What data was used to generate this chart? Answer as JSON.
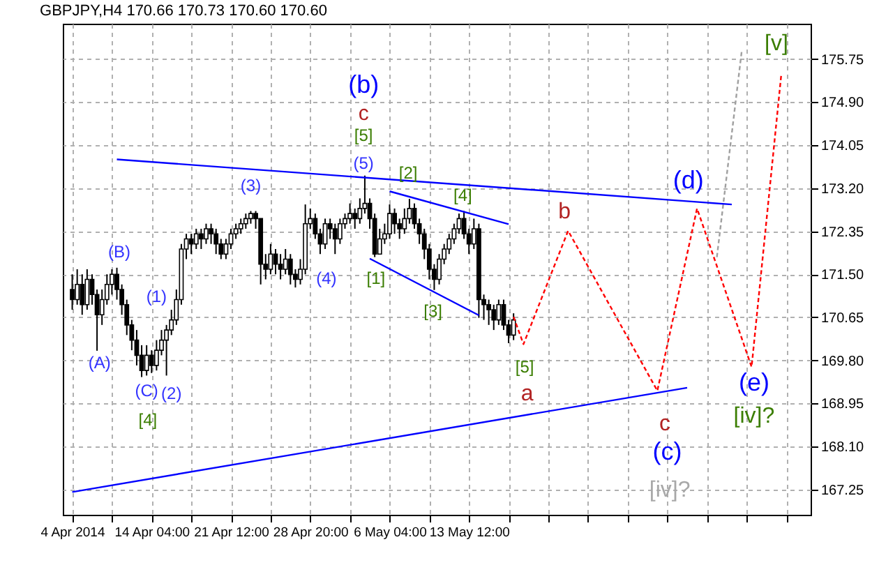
{
  "chart_data": {
    "type": "candlestick",
    "title": "GBPJPY,H4  170.66 170.73 170.60 170.60",
    "color": "#000000",
    "categories": [
      "4 Apr 2014",
      null,
      null,
      null,
      null,
      null,
      null,
      null,
      null,
      null,
      null,
      null,
      null,
      null,
      null,
      null,
      "14 Apr 04:00",
      null,
      null,
      null,
      null,
      null,
      null,
      null,
      null,
      null,
      null,
      null,
      null,
      null,
      null,
      null,
      "21 Apr 12:00",
      null,
      null,
      null,
      null,
      null,
      null,
      null,
      null,
      null,
      null,
      null,
      null,
      null,
      null,
      null,
      "28 Apr 20:00",
      null,
      null,
      null,
      null,
      null,
      null,
      null,
      null,
      null,
      null,
      null,
      null,
      null,
      null,
      null,
      "6 May 04:00",
      null,
      null,
      null,
      null,
      null,
      null,
      null,
      null,
      null,
      null,
      null,
      null,
      null,
      null,
      null,
      "13 May 12:00",
      null,
      null,
      null,
      null,
      null,
      null,
      null,
      null,
      null,
      null,
      null,
      null,
      null,
      null,
      null,
      null,
      null,
      null,
      null,
      null,
      null,
      null,
      null,
      null,
      null,
      null,
      null,
      null,
      null,
      null,
      null,
      null,
      null,
      null,
      null,
      null,
      null,
      null,
      null,
      null,
      null,
      null,
      null,
      null,
      null,
      null,
      null,
      null,
      null,
      null,
      null,
      null,
      null,
      null,
      null,
      null,
      null,
      null,
      null,
      null,
      null,
      null,
      null,
      null,
      null,
      null,
      null
    ],
    "ohlc": [
      [
        171.2,
        171.5,
        170.8,
        171.0
      ],
      [
        171.0,
        171.6,
        170.9,
        171.3
      ],
      [
        171.3,
        171.5,
        170.7,
        170.9
      ],
      [
        170.9,
        171.6,
        170.8,
        171.4
      ],
      [
        171.4,
        171.5,
        170.9,
        171.1
      ],
      [
        171.1,
        171.2,
        169.99,
        170.7
      ],
      [
        170.7,
        171.2,
        170.5,
        171.0
      ],
      [
        171.0,
        171.5,
        170.9,
        171.3
      ],
      [
        171.3,
        171.6,
        171.1,
        171.5
      ],
      [
        171.5,
        171.63,
        171.0,
        171.2
      ],
      [
        171.2,
        171.3,
        170.7,
        170.9
      ],
      [
        170.9,
        171.0,
        170.3,
        170.5
      ],
      [
        170.5,
        170.6,
        170.0,
        170.2
      ],
      [
        170.2,
        170.4,
        169.7,
        169.9
      ],
      [
        169.9,
        170.1,
        169.47,
        169.6
      ],
      [
        169.6,
        170.1,
        169.5,
        169.9
      ],
      [
        169.9,
        170.0,
        169.55,
        169.7
      ],
      [
        169.7,
        170.2,
        169.6,
        170.0
      ],
      [
        170.0,
        170.4,
        169.9,
        170.2
      ],
      [
        170.2,
        170.5,
        169.5,
        170.4
      ],
      [
        170.4,
        170.8,
        170.3,
        170.6
      ],
      [
        170.6,
        171.2,
        170.5,
        171.0
      ],
      [
        171.0,
        172.1,
        170.9,
        172.0
      ],
      [
        172.0,
        172.3,
        171.8,
        172.2
      ],
      [
        172.2,
        172.3,
        171.9,
        172.1
      ],
      [
        172.1,
        172.4,
        172.0,
        172.3
      ],
      [
        172.3,
        172.4,
        172.0,
        172.2
      ],
      [
        172.2,
        172.5,
        172.1,
        172.4
      ],
      [
        172.4,
        172.5,
        172.1,
        172.3
      ],
      [
        172.3,
        172.4,
        171.9,
        172.1
      ],
      [
        172.1,
        172.2,
        171.8,
        171.9
      ],
      [
        171.9,
        172.2,
        171.8,
        172.1
      ],
      [
        172.1,
        172.4,
        172.0,
        172.3
      ],
      [
        172.3,
        172.5,
        172.2,
        172.4
      ],
      [
        172.4,
        172.6,
        172.3,
        172.5
      ],
      [
        172.5,
        172.7,
        172.4,
        172.6
      ],
      [
        172.6,
        172.75,
        172.5,
        172.7
      ],
      [
        172.7,
        172.75,
        172.4,
        172.6
      ],
      [
        172.6,
        172.6,
        171.3,
        171.7
      ],
      [
        171.7,
        171.9,
        171.4,
        171.6
      ],
      [
        171.6,
        172.1,
        171.5,
        171.9
      ],
      [
        171.9,
        172.0,
        171.5,
        171.7
      ],
      [
        171.7,
        171.9,
        171.4,
        171.6
      ],
      [
        171.6,
        172.0,
        171.5,
        171.8
      ],
      [
        171.8,
        171.9,
        171.3,
        171.5
      ],
      [
        171.5,
        171.6,
        171.24,
        171.4
      ],
      [
        171.4,
        171.8,
        171.3,
        171.6
      ],
      [
        171.6,
        172.88,
        171.5,
        172.5
      ],
      [
        172.5,
        172.8,
        172.4,
        172.6
      ],
      [
        172.6,
        172.7,
        172.2,
        172.3
      ],
      [
        172.3,
        172.4,
        171.9,
        172.1
      ],
      [
        172.1,
        172.6,
        172.0,
        172.5
      ],
      [
        172.5,
        172.6,
        172.2,
        172.4
      ],
      [
        172.4,
        172.5,
        171.9,
        172.2
      ],
      [
        172.2,
        172.6,
        172.1,
        172.5
      ],
      [
        172.5,
        172.7,
        172.4,
        172.6
      ],
      [
        172.6,
        172.9,
        172.5,
        172.7
      ],
      [
        172.7,
        172.8,
        172.4,
        172.6
      ],
      [
        172.6,
        173.0,
        172.5,
        172.8
      ],
      [
        172.8,
        173.45,
        172.7,
        172.9
      ],
      [
        172.9,
        173.0,
        172.4,
        172.6
      ],
      [
        172.6,
        172.7,
        171.84,
        171.9
      ],
      [
        171.9,
        172.4,
        171.9,
        172.2
      ],
      [
        172.2,
        172.5,
        172.1,
        172.3
      ],
      [
        172.3,
        172.88,
        172.2,
        172.7
      ],
      [
        172.7,
        172.8,
        172.3,
        172.5
      ],
      [
        172.5,
        172.6,
        172.2,
        172.4
      ],
      [
        172.4,
        172.8,
        172.3,
        172.6
      ],
      [
        172.6,
        172.99,
        172.5,
        172.8
      ],
      [
        172.8,
        172.9,
        172.4,
        172.5
      ],
      [
        172.5,
        172.6,
        172.1,
        172.3
      ],
      [
        172.3,
        172.4,
        171.8,
        172.0
      ],
      [
        172.0,
        172.1,
        171.4,
        171.6
      ],
      [
        171.6,
        171.7,
        171.19,
        171.4
      ],
      [
        171.4,
        171.9,
        171.3,
        171.8
      ],
      [
        171.8,
        172.1,
        171.7,
        172.0
      ],
      [
        172.0,
        172.3,
        171.9,
        172.2
      ],
      [
        172.2,
        172.5,
        172.1,
        172.4
      ],
      [
        172.4,
        172.7,
        172.3,
        172.6
      ],
      [
        172.6,
        172.75,
        172.2,
        172.3
      ],
      [
        172.3,
        172.4,
        171.9,
        172.1
      ],
      [
        172.1,
        172.6,
        172.0,
        172.4
      ],
      [
        172.4,
        172.5,
        170.64,
        171.0
      ],
      [
        171.0,
        171.1,
        170.6,
        170.9
      ],
      [
        170.9,
        171.0,
        170.5,
        170.8
      ],
      [
        170.8,
        170.9,
        170.4,
        170.6
      ],
      [
        170.6,
        171.0,
        170.5,
        170.9
      ],
      [
        170.9,
        171.0,
        170.4,
        170.5
      ],
      [
        170.5,
        170.6,
        170.14,
        170.3
      ],
      [
        170.3,
        170.73,
        170.2,
        170.6
      ],
      null,
      null,
      null,
      null,
      null,
      null,
      null,
      null,
      null,
      null,
      null,
      null,
      null,
      null,
      null,
      null,
      null,
      null,
      null,
      null,
      null,
      null,
      null,
      null,
      null,
      null,
      null,
      null,
      null,
      null,
      null,
      null,
      null,
      null,
      null,
      null,
      null,
      null,
      null,
      null,
      null,
      null,
      null,
      null,
      null,
      null,
      null,
      null,
      null,
      null,
      null,
      null,
      null,
      null,
      null,
      null,
      null,
      null
    ],
    "series": [
      {
        "type": "line",
        "color": "#ff0000",
        "line_style": "dashed",
        "values": [
          null,
          null,
          null,
          null,
          null,
          null,
          null,
          null,
          null,
          null,
          null,
          null,
          null,
          null,
          null,
          null,
          null,
          null,
          null,
          null,
          null,
          null,
          null,
          null,
          null,
          null,
          null,
          null,
          null,
          null,
          null,
          null,
          null,
          null,
          null,
          null,
          null,
          null,
          null,
          null,
          null,
          null,
          null,
          null,
          null,
          null,
          null,
          null,
          null,
          null,
          null,
          null,
          null,
          null,
          null,
          null,
          null,
          null,
          null,
          null,
          null,
          null,
          null,
          null,
          null,
          null,
          null,
          null,
          null,
          null,
          null,
          null,
          null,
          null,
          null,
          null,
          null,
          null,
          null,
          null,
          null,
          null,
          null,
          null,
          null,
          null,
          null,
          null,
          null,
          170.66,
          null,
          170.12,
          null,
          null,
          null,
          null,
          null,
          null,
          null,
          null,
          172.36,
          null,
          null,
          null,
          null,
          null,
          null,
          null,
          null,
          null,
          null,
          null,
          null,
          null,
          null,
          null,
          null,
          null,
          169.2,
          null,
          null,
          null,
          null,
          null,
          null,
          null,
          172.8,
          null,
          null,
          null,
          null,
          null,
          null,
          null,
          null,
          null,
          null,
          169.67,
          null,
          null,
          null,
          null,
          null,
          175.46,
          null,
          null,
          null,
          null
        ]
      },
      {
        "type": "line",
        "color": "#a0a0a0",
        "line_style": "dashed",
        "values": [
          null,
          null,
          null,
          null,
          null,
          null,
          null,
          null,
          null,
          null,
          null,
          null,
          null,
          null,
          null,
          null,
          null,
          null,
          null,
          null,
          null,
          null,
          null,
          null,
          null,
          null,
          null,
          null,
          null,
          null,
          null,
          null,
          null,
          null,
          null,
          null,
          null,
          null,
          null,
          null,
          null,
          null,
          null,
          null,
          null,
          null,
          null,
          null,
          null,
          null,
          null,
          null,
          null,
          null,
          null,
          null,
          null,
          null,
          null,
          null,
          null,
          null,
          null,
          null,
          null,
          null,
          null,
          null,
          null,
          null,
          null,
          null,
          null,
          null,
          null,
          null,
          null,
          null,
          null,
          null,
          null,
          null,
          null,
          null,
          null,
          null,
          null,
          null,
          null,
          null,
          null,
          null,
          null,
          null,
          null,
          null,
          null,
          null,
          null,
          null,
          null,
          null,
          null,
          null,
          null,
          null,
          null,
          null,
          null,
          null,
          null,
          null,
          null,
          null,
          null,
          null,
          null,
          null,
          null,
          null,
          null,
          null,
          null,
          null,
          null,
          null,
          null,
          null,
          null,
          null,
          171.84,
          null,
          null,
          null,
          null,
          175.9,
          null,
          null,
          null,
          null,
          null,
          null,
          null,
          null,
          null,
          null,
          null,
          null
        ]
      },
      {
        "type": "line",
        "color": "#0000ff",
        "line_style": "solid",
        "values": [
          null,
          null,
          null,
          null,
          null,
          null,
          null,
          null,
          null,
          173.77,
          null,
          null,
          null,
          null,
          null,
          null,
          null,
          null,
          null,
          null,
          null,
          null,
          null,
          null,
          null,
          null,
          null,
          null,
          null,
          null,
          null,
          null,
          null,
          null,
          null,
          null,
          null,
          null,
          null,
          null,
          null,
          null,
          null,
          null,
          null,
          null,
          null,
          null,
          null,
          null,
          null,
          null,
          null,
          null,
          null,
          null,
          null,
          null,
          null,
          null,
          null,
          null,
          null,
          null,
          null,
          null,
          null,
          null,
          null,
          null,
          null,
          null,
          null,
          null,
          null,
          null,
          null,
          null,
          null,
          null,
          null,
          null,
          null,
          null,
          null,
          null,
          null,
          null,
          null,
          null,
          null,
          null,
          null,
          null,
          null,
          null,
          null,
          null,
          null,
          null,
          null,
          null,
          null,
          null,
          null,
          null,
          null,
          null,
          null,
          null,
          null,
          null,
          null,
          null,
          null,
          null,
          null,
          null,
          null,
          null,
          null,
          null,
          null,
          null,
          null,
          null,
          null,
          null,
          null,
          null,
          null,
          null,
          null,
          172.88,
          null,
          null,
          null,
          null,
          null,
          null,
          null,
          null,
          null,
          null,
          null,
          null,
          null,
          null
        ]
      },
      {
        "type": "line",
        "color": "#0000ff",
        "line_style": "solid",
        "values": [
          167.2,
          null,
          null,
          null,
          null,
          null,
          null,
          null,
          null,
          null,
          null,
          null,
          null,
          null,
          null,
          null,
          null,
          null,
          null,
          null,
          null,
          null,
          null,
          null,
          null,
          null,
          null,
          null,
          null,
          null,
          null,
          null,
          null,
          null,
          null,
          null,
          null,
          null,
          null,
          null,
          null,
          null,
          null,
          null,
          null,
          null,
          null,
          null,
          null,
          null,
          null,
          null,
          null,
          null,
          null,
          null,
          null,
          null,
          null,
          null,
          null,
          null,
          null,
          null,
          null,
          null,
          null,
          null,
          null,
          null,
          null,
          null,
          null,
          null,
          null,
          null,
          null,
          null,
          null,
          null,
          null,
          null,
          null,
          null,
          null,
          null,
          null,
          null,
          null,
          null,
          null,
          null,
          null,
          null,
          null,
          null,
          null,
          null,
          null,
          null,
          null,
          null,
          null,
          null,
          null,
          null,
          null,
          null,
          null,
          null,
          null,
          null,
          null,
          null,
          null,
          null,
          null,
          null,
          null,
          null,
          null,
          null,
          null,
          null,
          169.26,
          null,
          null,
          null,
          null,
          null,
          null,
          null,
          null,
          null,
          null,
          null,
          null,
          null,
          null,
          null,
          null,
          null,
          null,
          null,
          null,
          null,
          null,
          null
        ]
      },
      {
        "type": "line",
        "color": "#0000ff",
        "line_style": "solid",
        "values": [
          null,
          null,
          null,
          null,
          null,
          null,
          null,
          null,
          null,
          null,
          null,
          null,
          null,
          null,
          null,
          null,
          null,
          null,
          null,
          null,
          null,
          null,
          null,
          null,
          null,
          null,
          null,
          null,
          null,
          null,
          null,
          null,
          null,
          null,
          null,
          null,
          null,
          null,
          null,
          null,
          null,
          null,
          null,
          null,
          null,
          null,
          null,
          null,
          null,
          null,
          null,
          null,
          null,
          null,
          null,
          null,
          null,
          null,
          null,
          null,
          null,
          null,
          null,
          null,
          173.14,
          null,
          null,
          null,
          null,
          null,
          null,
          null,
          null,
          null,
          null,
          null,
          null,
          null,
          null,
          null,
          null,
          null,
          null,
          null,
          null,
          null,
          null,
          null,
          172.49,
          null,
          null,
          null,
          null,
          null,
          null,
          null,
          null,
          null,
          null,
          null,
          null,
          null,
          null,
          null,
          null,
          null,
          null,
          null,
          null,
          null,
          null,
          null,
          null,
          null,
          null,
          null,
          null,
          null,
          null,
          null,
          null,
          null,
          null,
          null,
          null,
          null,
          null,
          null,
          null,
          null,
          null,
          null,
          null,
          null,
          null,
          null,
          null,
          null,
          null,
          null,
          null,
          null,
          null,
          null,
          null,
          null,
          null,
          null
        ]
      },
      {
        "type": "line",
        "color": "#0000ff",
        "line_style": "solid",
        "values": [
          null,
          null,
          null,
          null,
          null,
          null,
          null,
          null,
          null,
          null,
          null,
          null,
          null,
          null,
          null,
          null,
          null,
          null,
          null,
          null,
          null,
          null,
          null,
          null,
          null,
          null,
          null,
          null,
          null,
          null,
          null,
          null,
          null,
          null,
          null,
          null,
          null,
          null,
          null,
          null,
          null,
          null,
          null,
          null,
          null,
          null,
          null,
          null,
          null,
          null,
          null,
          null,
          null,
          null,
          null,
          null,
          null,
          null,
          null,
          null,
          171.81,
          null,
          null,
          null,
          null,
          null,
          null,
          null,
          null,
          null,
          null,
          null,
          null,
          null,
          null,
          null,
          null,
          null,
          null,
          null,
          null,
          null,
          170.69,
          null,
          null,
          null,
          null,
          null,
          null,
          null,
          null,
          null,
          null,
          null,
          null,
          null,
          null,
          null,
          null,
          null,
          null,
          null,
          null,
          null,
          null,
          null,
          null,
          null,
          null,
          null,
          null,
          null,
          null,
          null,
          null,
          null,
          null,
          null,
          null,
          null,
          null,
          null,
          null,
          null,
          null,
          null,
          null,
          null,
          null,
          null,
          null,
          null,
          null,
          null,
          null,
          null,
          null,
          null,
          null,
          null,
          null,
          null,
          null,
          null,
          null,
          null,
          null,
          null
        ]
      }
    ],
    "ylim": [
      166.75,
      176.45
    ],
    "yticks": [
      {
        "value": 167.25,
        "label": "167.25"
      },
      {
        "value": 168.1,
        "label": "168.10"
      },
      {
        "value": 168.95,
        "label": "168.95"
      },
      {
        "value": 169.8,
        "label": "169.80"
      },
      {
        "value": 170.65,
        "label": "170.65"
      },
      {
        "value": 171.5,
        "label": "171.50"
      },
      {
        "value": 172.35,
        "label": "172.35"
      },
      {
        "value": 173.2,
        "label": "173.20"
      },
      {
        "value": 174.05,
        "label": "174.05"
      },
      {
        "value": 174.9,
        "label": "174.90"
      },
      {
        "value": 175.75,
        "label": "175.75"
      }
    ],
    "grid": true,
    "annotations": [
      "(A)",
      "(B)",
      "(C)",
      "[4]",
      "(2)",
      "(1)",
      "(3)",
      "(4)",
      {
        "text": "(5)",
        "y": 173.45
      },
      "[5]",
      "c",
      "(b)",
      "[1]",
      "[2]",
      "[3]",
      "[4]",
      "[5]",
      "a",
      "b",
      "c",
      "(c)",
      "[iv]?",
      "(d)",
      "(e)",
      "[iv]?",
      "[v]"
    ]
  }
}
